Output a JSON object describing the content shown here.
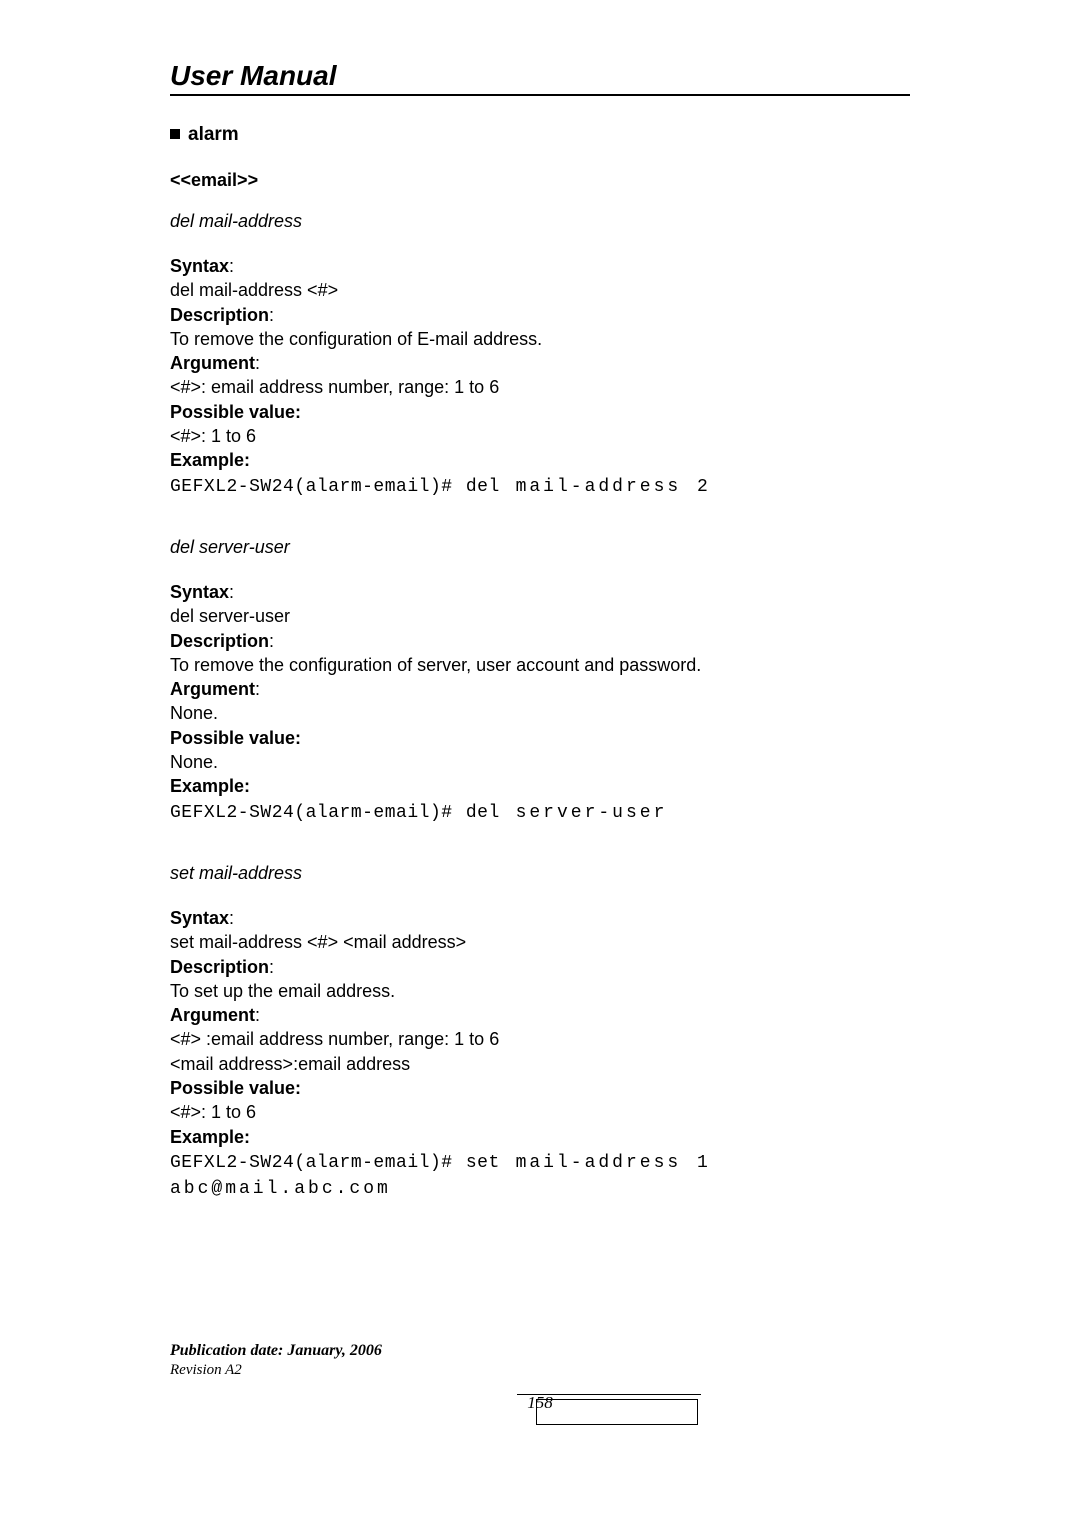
{
  "header": {
    "title": "User Manual"
  },
  "section": {
    "heading": "alarm",
    "subheading": "<<email>>"
  },
  "commands": [
    {
      "name": "del  mail-address",
      "syntax_label": "Syntax",
      "syntax": "del mail-address <#>",
      "description_label": "Description",
      "description": "To remove the configuration of E-mail address.",
      "argument_label": "Argument",
      "argument": "<#>: email address number, range: 1 to 6",
      "possible_label": "Possible value:",
      "possible": "<#>: 1 to 6",
      "example_label": "Example:",
      "example_prefix": "GEFXL2-SW24(alarm-email)# del",
      "example_rest": "  mail-address 2"
    },
    {
      "name": "del  server-user",
      "syntax_label": "Syntax",
      "syntax": "del server-user",
      "description_label": "Description",
      "description": "To remove the configuration of server, user account and password.",
      "argument_label": "Argument",
      "argument": "None.",
      "possible_label": "Possible value:",
      "possible": "None.",
      "example_label": "Example:",
      "example_prefix": "GEFXL2-SW24(alarm-email)# del",
      "example_rest": "  server-user"
    },
    {
      "name": "set mail-address",
      "syntax_label": "Syntax",
      "syntax": "set mail-address <#> <mail address>",
      "description_label": "Description",
      "description": "To set up the email address.",
      "argument_label": "Argument",
      "argument": "<#> :email address number, range: 1 to 6",
      "argument2": "<mail address>:email address",
      "possible_label": "Possible value:",
      "possible": "<#>: 1 to 6",
      "example_label": "Example:",
      "example_prefix": "GEFXL2-SW24(alarm-email)# set",
      "example_rest": "  mail-address 1  abc@mail.abc.com"
    }
  ],
  "footer": {
    "publication": "Publication date: January, 2006",
    "revision": "Revision A2",
    "page_number": "158"
  }
}
